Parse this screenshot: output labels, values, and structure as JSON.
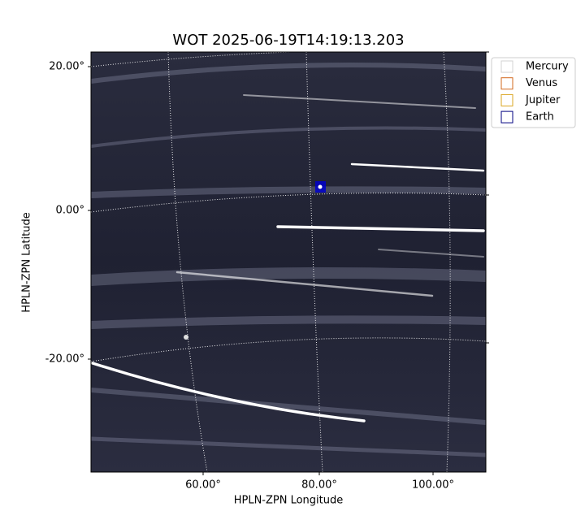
{
  "title": "WOT 2025-06-19T14:19:13.203",
  "axes": {
    "x_label": "HPLN-ZPN Longitude",
    "y_label": "HPLN-ZPN Latitude",
    "x_ticks": [
      "60.00°",
      "80.00°",
      "100.00°"
    ],
    "y_ticks": [
      "20.00°",
      "0.00°",
      "-20.00°"
    ]
  },
  "legend": [
    {
      "label": "Mercury",
      "color": "#d3d3d3"
    },
    {
      "label": "Venus",
      "color": "#d2691e"
    },
    {
      "label": "Jupiter",
      "color": "#daa520"
    },
    {
      "label": "Earth",
      "color": "#000080"
    }
  ]
}
